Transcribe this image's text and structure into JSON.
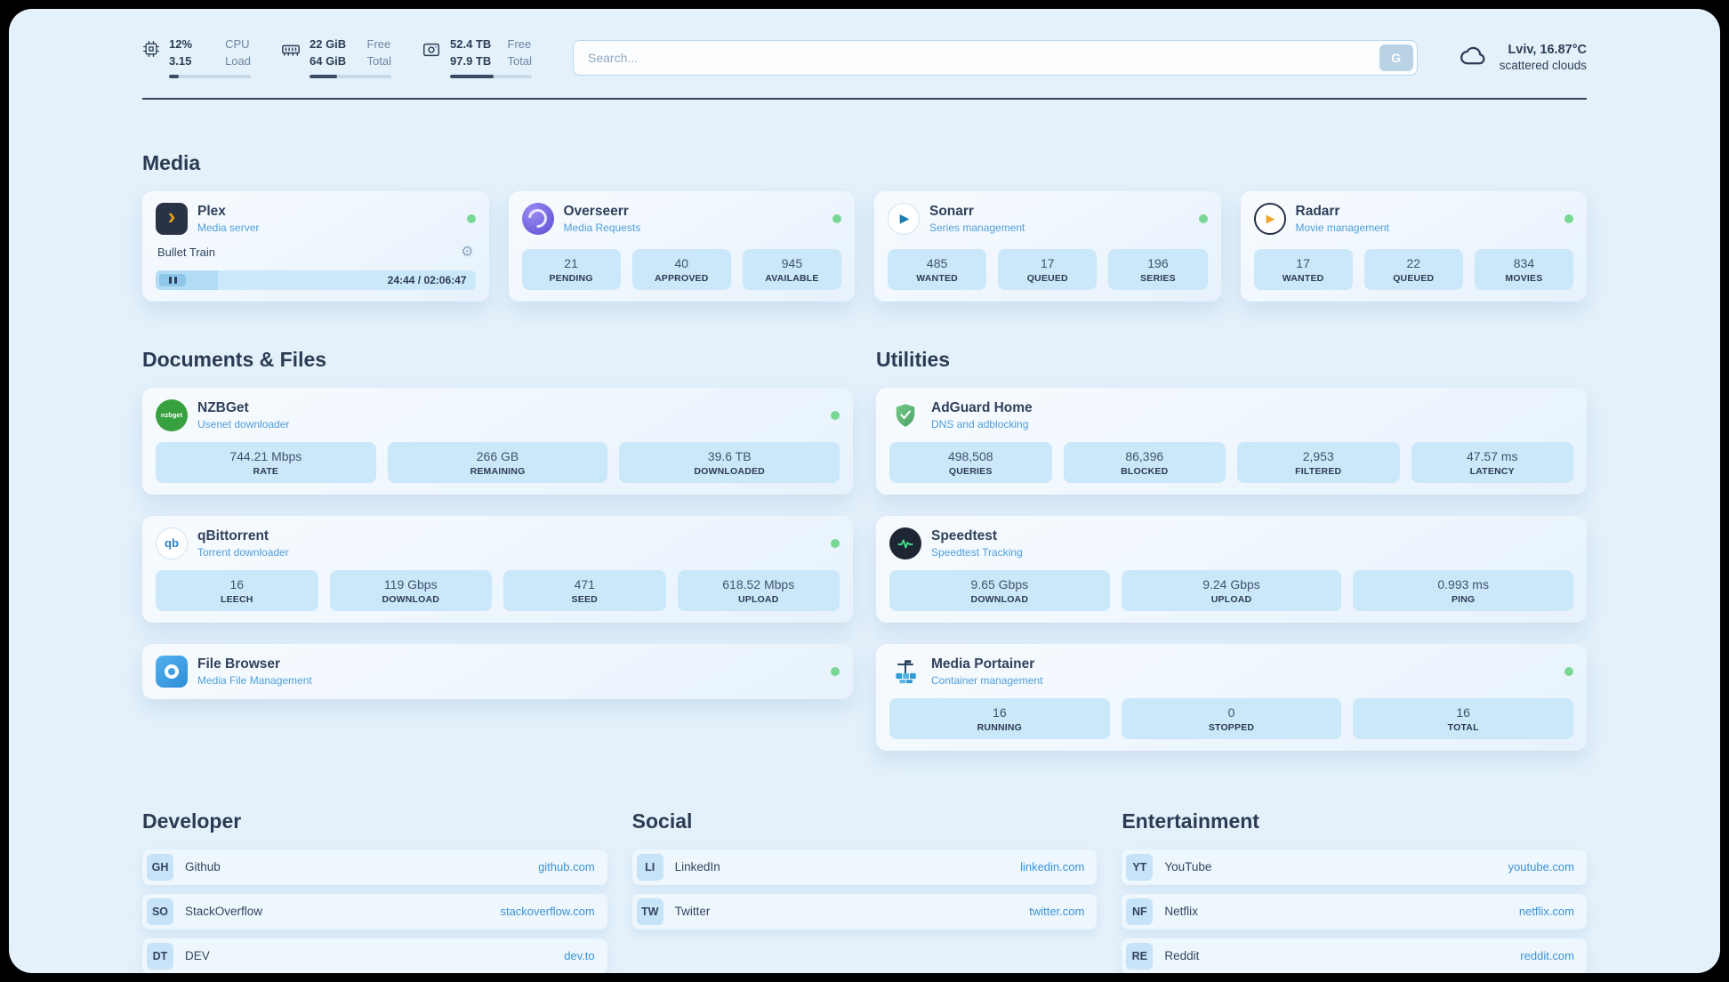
{
  "header": {
    "cpu": {
      "value_top": "12%",
      "value_bottom": "3.15",
      "label_top": "CPU",
      "label_bottom": "Load",
      "progress": 12
    },
    "ram": {
      "value_top": "22 GiB",
      "value_bottom": "64 GiB",
      "label_top": "Free",
      "label_bottom": "Total",
      "progress": 34
    },
    "disk": {
      "value_top": "52.4 TB",
      "value_bottom": "97.9 TB",
      "label_top": "Free",
      "label_bottom": "Total",
      "progress": 53
    },
    "search": {
      "placeholder": "Search...",
      "button_label": "G"
    },
    "weather": {
      "location": "Lviv, 16.87°C",
      "condition": "scattered clouds"
    }
  },
  "media": {
    "title": "Media",
    "plex": {
      "name": "Plex",
      "subtitle": "Media server",
      "icon_text": "›",
      "player_title": "Bullet Train",
      "time": "24:44 / 02:06:47",
      "progress": 19.6
    },
    "overseerr": {
      "name": "Overseerr",
      "subtitle": "Media Requests",
      "stats": [
        {
          "value": "21",
          "label": "PENDING"
        },
        {
          "value": "40",
          "label": "APPROVED"
        },
        {
          "value": "945",
          "label": "AVAILABLE"
        }
      ]
    },
    "sonarr": {
      "name": "Sonarr",
      "subtitle": "Series management",
      "icon_text": "▶",
      "stats": [
        {
          "value": "485",
          "label": "WANTED"
        },
        {
          "value": "17",
          "label": "QUEUED"
        },
        {
          "value": "196",
          "label": "SERIES"
        }
      ]
    },
    "radarr": {
      "name": "Radarr",
      "subtitle": "Movie management",
      "icon_text": "▶",
      "stats": [
        {
          "value": "17",
          "label": "WANTED"
        },
        {
          "value": "22",
          "label": "QUEUED"
        },
        {
          "value": "834",
          "label": "MOVIES"
        }
      ]
    }
  },
  "documents": {
    "title": "Documents & Files",
    "nzbget": {
      "name": "NZBGet",
      "subtitle": "Usenet downloader",
      "icon_text": "nzbget",
      "stats": [
        {
          "value": "744.21 Mbps",
          "label": "RATE"
        },
        {
          "value": "266 GB",
          "label": "REMAINING"
        },
        {
          "value": "39.6 TB",
          "label": "DOWNLOADED"
        }
      ]
    },
    "qbittorrent": {
      "name": "qBittorrent",
      "subtitle": "Torrent downloader",
      "icon_text": "qb",
      "stats": [
        {
          "value": "16",
          "label": "LEECH"
        },
        {
          "value": "119 Gbps",
          "label": "DOWNLOAD"
        },
        {
          "value": "471",
          "label": "SEED"
        },
        {
          "value": "618.52 Mbps",
          "label": "UPLOAD"
        }
      ]
    },
    "filebrowser": {
      "name": "File Browser",
      "subtitle": "Media File Management"
    }
  },
  "utilities": {
    "title": "Utilities",
    "adguard": {
      "name": "AdGuard Home",
      "subtitle": "DNS and adblocking",
      "stats": [
        {
          "value": "498,508",
          "label": "QUERIES"
        },
        {
          "value": "86,396",
          "label": "BLOCKED"
        },
        {
          "value": "2,953",
          "label": "FILTERED"
        },
        {
          "value": "47.57 ms",
          "label": "LATENCY"
        }
      ]
    },
    "speedtest": {
      "name": "Speedtest",
      "subtitle": "Speedtest Tracking",
      "stats": [
        {
          "value": "9.65 Gbps",
          "label": "DOWNLOAD"
        },
        {
          "value": "9.24 Gbps",
          "label": "UPLOAD"
        },
        {
          "value": "0.993 ms",
          "label": "PING"
        }
      ]
    },
    "portainer": {
      "name": "Media Portainer",
      "subtitle": "Container management",
      "stats": [
        {
          "value": "16",
          "label": "RUNNING"
        },
        {
          "value": "0",
          "label": "STOPPED"
        },
        {
          "value": "16",
          "label": "TOTAL"
        }
      ]
    }
  },
  "links": {
    "developer": {
      "title": "Developer",
      "items": [
        {
          "badge": "GH",
          "name": "Github",
          "url": "github.com"
        },
        {
          "badge": "SO",
          "name": "StackOverflow",
          "url": "stackoverflow.com"
        },
        {
          "badge": "DT",
          "name": "DEV",
          "url": "dev.to"
        }
      ]
    },
    "social": {
      "title": "Social",
      "items": [
        {
          "badge": "LI",
          "name": "LinkedIn",
          "url": "linkedin.com"
        },
        {
          "badge": "TW",
          "name": "Twitter",
          "url": "twitter.com"
        }
      ]
    },
    "entertainment": {
      "title": "Entertainment",
      "items": [
        {
          "badge": "YT",
          "name": "YouTube",
          "url": "youtube.com"
        },
        {
          "badge": "NF",
          "name": "Netflix",
          "url": "netflix.com"
        },
        {
          "badge": "RE",
          "name": "Reddit",
          "url": "reddit.com"
        }
      ]
    }
  }
}
